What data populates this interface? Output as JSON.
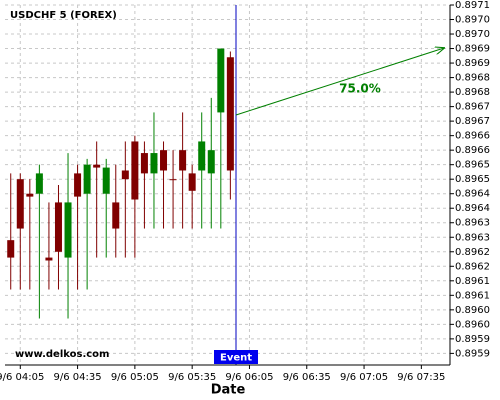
{
  "chart_data": {
    "type": "candlestick",
    "title": "USDCHF 5 (FOREX)",
    "watermark": "www.delkos.com",
    "x_label": "Date",
    "event_label": "Event",
    "annotation": "75.0%",
    "up_color": "#008000",
    "down_color": "#800000",
    "grid": true,
    "x": [
      "9/6 04:00",
      "9/6 04:05",
      "9/6 04:10",
      "9/6 04:15",
      "9/6 04:20",
      "9/6 04:25",
      "9/6 04:30",
      "9/6 04:35",
      "9/6 04:40",
      "9/6 04:45",
      "9/6 04:50",
      "9/6 04:55",
      "9/6 05:00",
      "9/6 05:05",
      "9/6 05:10",
      "9/6 05:15",
      "9/6 05:20",
      "9/6 05:25",
      "9/6 05:30",
      "9/6 05:35",
      "9/6 05:40",
      "9/6 05:45",
      "9/6 05:50",
      "9/6 05:55"
    ],
    "open": [
      0.89629,
      0.8965,
      0.89645,
      0.89645,
      0.89623,
      0.89642,
      0.89623,
      0.89652,
      0.89645,
      0.89655,
      0.89645,
      0.89642,
      0.89653,
      0.89663,
      0.89659,
      0.89652,
      0.8966,
      0.8965,
      0.8966,
      0.89652,
      0.89653,
      0.89652,
      0.89673,
      0.89692
    ],
    "high": [
      0.89652,
      0.89652,
      0.8965,
      0.89655,
      0.89642,
      0.89648,
      0.89659,
      0.89655,
      0.89657,
      0.89663,
      0.89657,
      0.89655,
      0.89663,
      0.89665,
      0.89663,
      0.89673,
      0.89663,
      0.8966,
      0.89673,
      0.89655,
      0.89673,
      0.89678,
      0.89695,
      0.89694
    ],
    "low": [
      0.89612,
      0.89612,
      0.89612,
      0.89602,
      0.89612,
      0.89612,
      0.89602,
      0.89612,
      0.89612,
      0.89623,
      0.89623,
      0.89623,
      0.89623,
      0.89623,
      0.89633,
      0.89633,
      0.89633,
      0.89633,
      0.89633,
      0.89633,
      0.89633,
      0.89633,
      0.89633,
      0.89643
    ],
    "close": [
      0.89623,
      0.89633,
      0.89644,
      0.89652,
      0.89622,
      0.89625,
      0.89642,
      0.89644,
      0.89655,
      0.89654,
      0.89654,
      0.89633,
      0.8965,
      0.89643,
      0.89652,
      0.89659,
      0.89653,
      0.8965,
      0.89653,
      0.89646,
      0.89663,
      0.8966,
      0.89695,
      0.89653
    ],
    "xlim": [
      "9/6 03:57",
      "9/6 07:50"
    ],
    "xticks": [
      "9/6 04:05",
      "9/6 04:35",
      "9/6 05:05",
      "9/6 05:35",
      "9/6 06:05",
      "9/6 06:35",
      "9/6 07:05",
      "9/6 07:35"
    ],
    "ylim": [
      0.89586,
      0.8971
    ],
    "yticks": [
      {
        "value": 0.8971,
        "label": "0.8971"
      },
      {
        "value": 0.89705,
        "label": "0.8970"
      },
      {
        "value": 0.897,
        "label": "0.8970"
      },
      {
        "value": 0.89695,
        "label": "0.8969"
      },
      {
        "value": 0.8969,
        "label": "0.8969"
      },
      {
        "value": 0.89685,
        "label": "0.8968"
      },
      {
        "value": 0.8968,
        "label": "0.8968"
      },
      {
        "value": 0.89675,
        "label": "0.8967"
      },
      {
        "value": 0.8967,
        "label": "0.8967"
      },
      {
        "value": 0.89665,
        "label": "0.8966"
      },
      {
        "value": 0.8966,
        "label": "0.8966"
      },
      {
        "value": 0.89655,
        "label": "0.8965"
      },
      {
        "value": 0.8965,
        "label": "0.8965"
      },
      {
        "value": 0.89645,
        "label": "0.8964"
      },
      {
        "value": 0.8964,
        "label": "0.8964"
      },
      {
        "value": 0.89635,
        "label": "0.8963"
      },
      {
        "value": 0.8963,
        "label": "0.8963"
      },
      {
        "value": 0.89625,
        "label": "0.8962"
      },
      {
        "value": 0.8962,
        "label": "0.8962"
      },
      {
        "value": 0.89615,
        "label": "0.8961"
      },
      {
        "value": 0.8961,
        "label": "0.8961"
      },
      {
        "value": 0.89605,
        "label": "0.8960"
      },
      {
        "value": 0.896,
        "label": "0.8960"
      },
      {
        "value": 0.89595,
        "label": "0.8959"
      },
      {
        "value": 0.8959,
        "label": "0.8959"
      }
    ]
  }
}
